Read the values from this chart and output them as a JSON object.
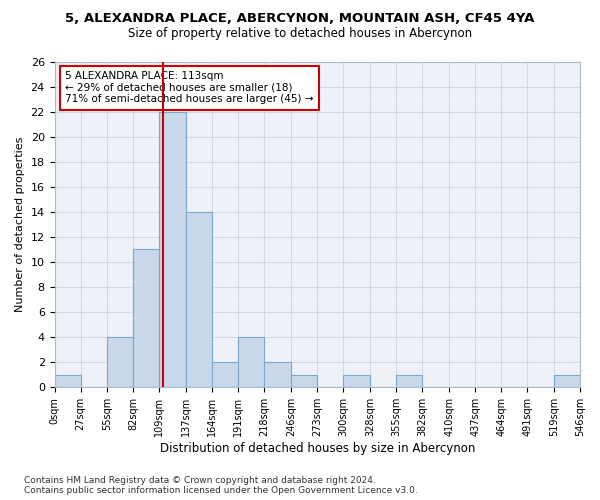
{
  "title": "5, ALEXANDRA PLACE, ABERCYNON, MOUNTAIN ASH, CF45 4YA",
  "subtitle": "Size of property relative to detached houses in Abercynon",
  "xlabel": "Distribution of detached houses by size in Abercynon",
  "ylabel": "Number of detached properties",
  "bin_edges": [
    0,
    27,
    55,
    82,
    109,
    137,
    164,
    191,
    218,
    246,
    273,
    300,
    328,
    355,
    382,
    410,
    437,
    464,
    491,
    519,
    546
  ],
  "bin_counts": [
    1,
    0,
    4,
    11,
    22,
    14,
    2,
    4,
    2,
    1,
    0,
    1,
    0,
    1,
    0,
    0,
    0,
    0,
    0,
    1
  ],
  "bar_color": "#c8d8ea",
  "bar_edgecolor": "#7aa8cc",
  "highlight_color": "#cc0000",
  "property_size": 113,
  "annotation_text": "5 ALEXANDRA PLACE: 113sqm\n← 29% of detached houses are smaller (18)\n71% of semi-detached houses are larger (45) →",
  "annotation_box_color": "#ffffff",
  "annotation_box_edgecolor": "#cc0000",
  "ylim": [
    0,
    26
  ],
  "yticks": [
    0,
    2,
    4,
    6,
    8,
    10,
    12,
    14,
    16,
    18,
    20,
    22,
    24,
    26
  ],
  "tick_labels": [
    "0sqm",
    "27sqm",
    "55sqm",
    "82sqm",
    "109sqm",
    "137sqm",
    "164sqm",
    "191sqm",
    "218sqm",
    "246sqm",
    "273sqm",
    "300sqm",
    "328sqm",
    "355sqm",
    "382sqm",
    "410sqm",
    "437sqm",
    "464sqm",
    "491sqm",
    "519sqm",
    "546sqm"
  ],
  "footer": "Contains HM Land Registry data © Crown copyright and database right 2024.\nContains public sector information licensed under the Open Government Licence v3.0.",
  "grid_color": "#d0d8e8",
  "bg_color": "#eef2f8"
}
